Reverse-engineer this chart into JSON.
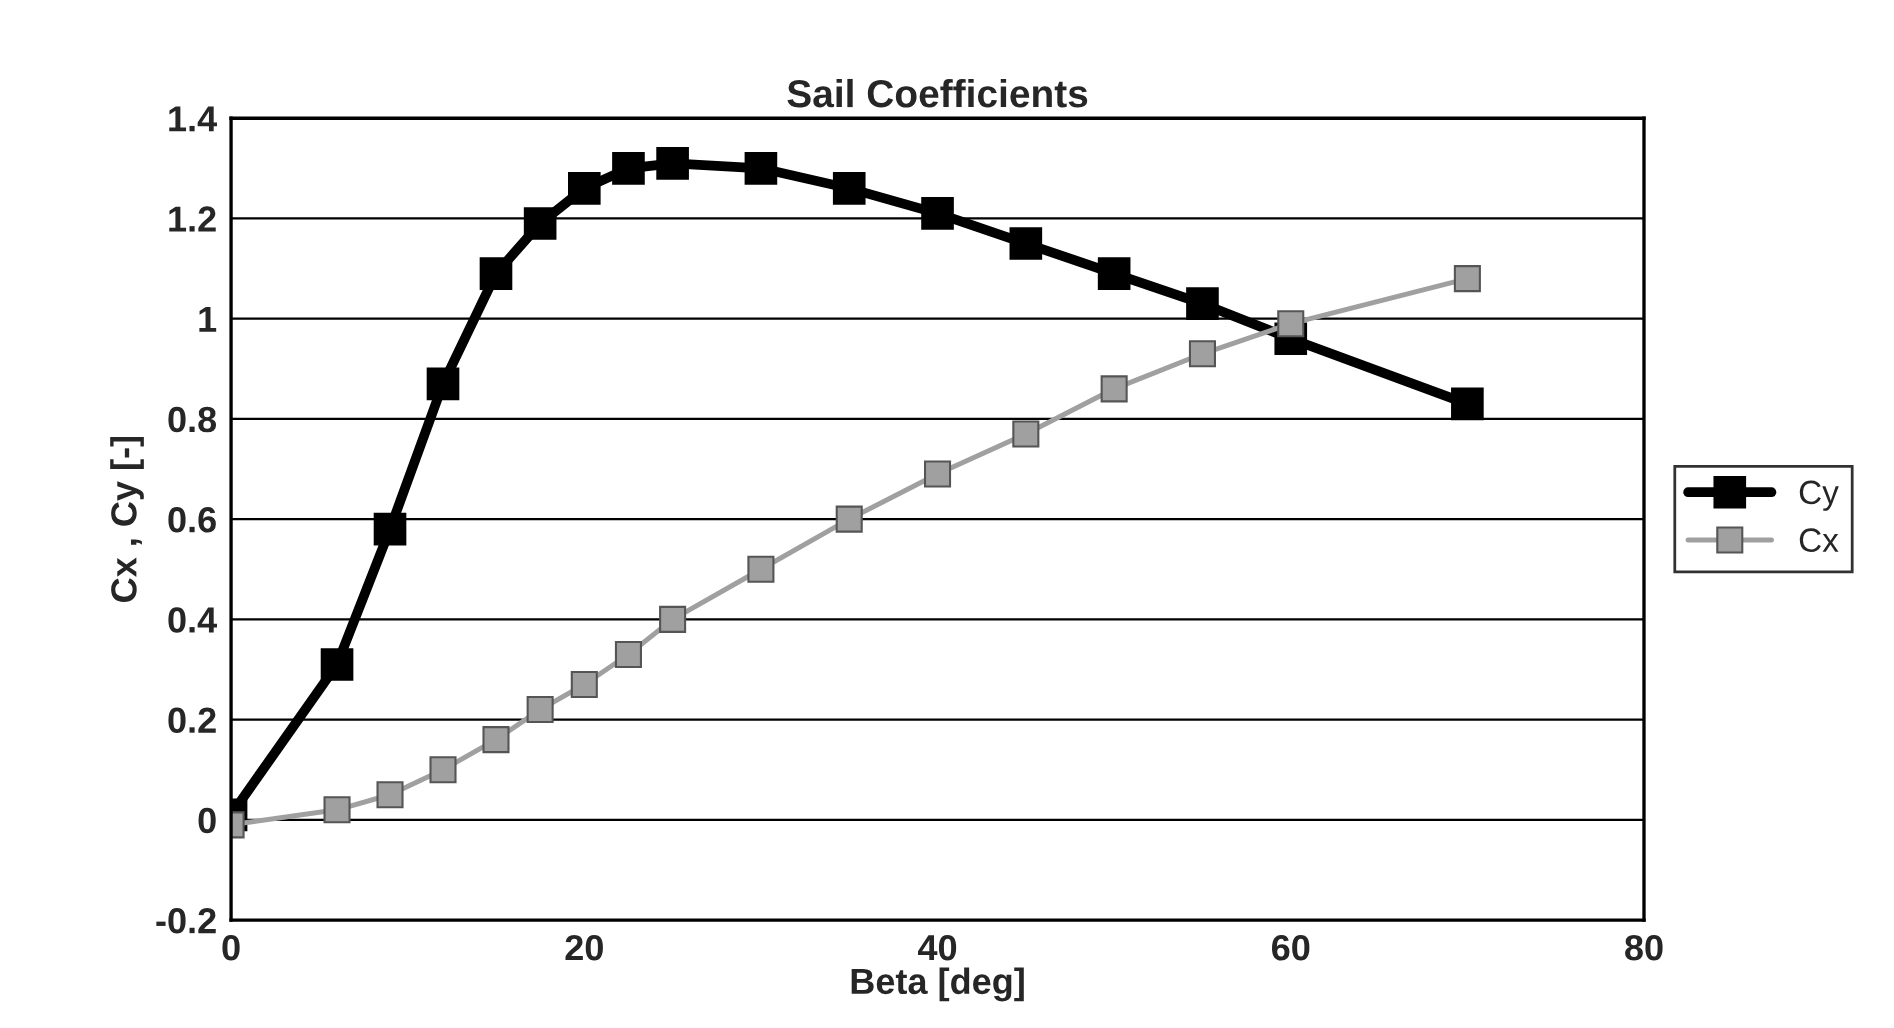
{
  "chart_data": {
    "type": "line",
    "title": "Sail Coefficients",
    "xlabel": "Beta [deg]",
    "ylabel": "Cx , Cy [-]",
    "x": [
      0,
      6,
      9,
      12,
      15,
      17.5,
      20,
      22.5,
      25,
      30,
      35,
      40,
      45,
      50,
      55,
      60,
      70
    ],
    "series": [
      {
        "name": "Cy",
        "color": "#000000",
        "values": [
          0.01,
          0.31,
          0.58,
          0.87,
          1.09,
          1.19,
          1.26,
          1.3,
          1.31,
          1.3,
          1.26,
          1.21,
          1.15,
          1.09,
          1.03,
          0.96,
          0.83
        ]
      },
      {
        "name": "Cx",
        "color": "#a0a0a0",
        "values": [
          -0.01,
          0.02,
          0.05,
          0.1,
          0.16,
          0.22,
          0.27,
          0.33,
          0.4,
          0.5,
          0.6,
          0.69,
          0.77,
          0.86,
          0.93,
          0.99,
          1.08
        ]
      }
    ],
    "xlim": [
      0,
      80
    ],
    "xticks": [
      0,
      20,
      40,
      60,
      80
    ],
    "ylim": [
      -0.2,
      1.4
    ],
    "yticks": [
      -0.2,
      0,
      0.2,
      0.4,
      0.6,
      0.8,
      1,
      1.2,
      1.4
    ],
    "grid": "y",
    "legend": "right",
    "marker": "square",
    "line_style": "solid"
  }
}
